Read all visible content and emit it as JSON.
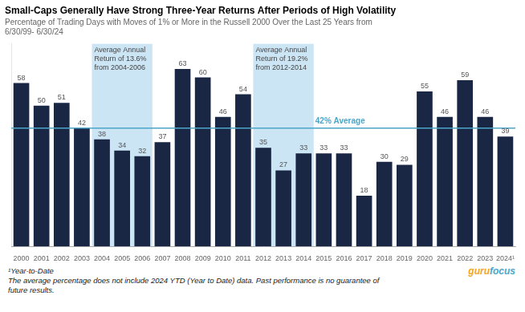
{
  "chart_data": {
    "type": "bar",
    "title": "Small-Caps Generally Have Strong Three-Year Returns After Periods of High Volatility",
    "subtitle": "Percentage of Trading Days with Moves of 1% or More in the Russell 2000 Over the Last 25 Years from\n6/30/99- 6/30/24",
    "categories": [
      "2000",
      "2001",
      "2002",
      "2003",
      "2004",
      "2005",
      "2006",
      "2007",
      "2008",
      "2009",
      "2010",
      "2011",
      "2012",
      "2013",
      "2014",
      "2015",
      "2016",
      "2017",
      "2018",
      "2019",
      "2020",
      "2021",
      "2022",
      "2023",
      "2024¹"
    ],
    "values": [
      58,
      50,
      51,
      42,
      38,
      34,
      32,
      37,
      63,
      60,
      46,
      54,
      35,
      27,
      33,
      33,
      33,
      18,
      30,
      29,
      55,
      46,
      59,
      46,
      39
    ],
    "color": "#1a2744",
    "ylim": [
      0,
      72
    ],
    "yticks": [],
    "grid": false,
    "tick_labels": "x",
    "data_labels": true,
    "reference_lines": [
      {
        "y": 42,
        "label": "42% Average",
        "color": "#4da6c8"
      }
    ],
    "highlight_regions": [
      {
        "start": "2004",
        "end": "2006",
        "label": "Average Annual\nReturn of 13.6%\nfrom 2004-2006",
        "color": "#cce5f5"
      },
      {
        "start": "2012",
        "end": "2014",
        "label": "Average Annual\nReturn of 19.2%\nfrom 2012-2014",
        "color": "#cce5f5"
      }
    ],
    "footnotes": [
      "¹Year-to-Date",
      "The average percentage does not include 2024 YTD (Year to Date) data. Past performance is no guarantee of\nfuture results."
    ],
    "credit": [
      {
        "text": "guru",
        "color": "#f5a623"
      },
      {
        "text": "focus",
        "color": "#4da6c8"
      }
    ]
  }
}
